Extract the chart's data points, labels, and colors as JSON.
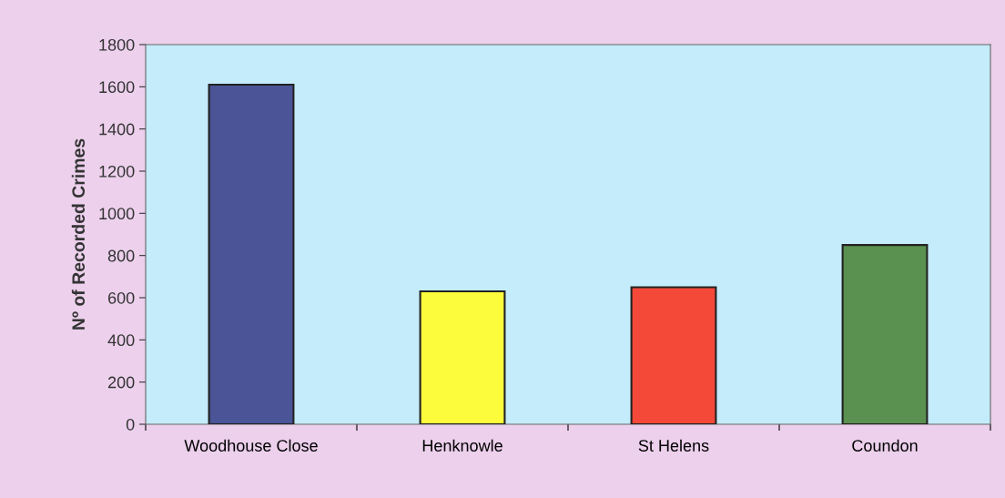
{
  "chart_data": {
    "type": "bar",
    "ylabel": "Nº of Recorded Crimes",
    "categories": [
      "Woodhouse Close",
      "Henknowle",
      "St Helens",
      "Coundon"
    ],
    "values": [
      1610,
      630,
      650,
      850
    ],
    "colors": [
      "#4a5496",
      "#fcfc3c",
      "#f44838",
      "#5a9050"
    ],
    "ylim": [
      0,
      1800
    ],
    "yticks": [
      0,
      200,
      400,
      600,
      800,
      1000,
      1200,
      1400,
      1600,
      1800
    ],
    "grid": false
  }
}
